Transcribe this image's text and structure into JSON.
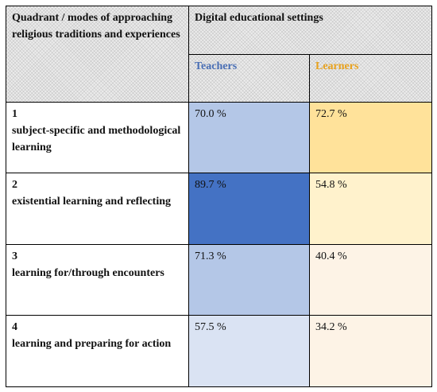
{
  "header": {
    "quadrant_label": "Quadrant / modes of approaching religious traditions and experiences",
    "settings_label": "Digital educational settings",
    "teachers_label": "Teachers",
    "learners_label": "Learners"
  },
  "colors": {
    "teachers_header": "#4a6fb5",
    "learners_header": "#e8a21e"
  },
  "rows": [
    {
      "num": "1",
      "label": "subject-specific and methodological learning",
      "teachers": "70.0 %",
      "learners": "72.7 %",
      "teachers_bg": "#b4c7e7",
      "learners_bg": "#ffe29a"
    },
    {
      "num": "2",
      "label": "existential learning and reflecting",
      "teachers": "89.7 %",
      "learners": "54.8 %",
      "teachers_bg": "#4472c4",
      "learners_bg": "#fff2cc"
    },
    {
      "num": "3",
      "label": "learning for/through encounters",
      "teachers": "71.3 %",
      "learners": "40.4 %",
      "teachers_bg": "#b4c7e7",
      "learners_bg": "#fdf3e6"
    },
    {
      "num": "4",
      "label": "learning and preparing for action",
      "teachers": "57.5 %",
      "learners": "34.2 %",
      "teachers_bg": "#dae3f3",
      "learners_bg": "#fdf3e6"
    }
  ]
}
